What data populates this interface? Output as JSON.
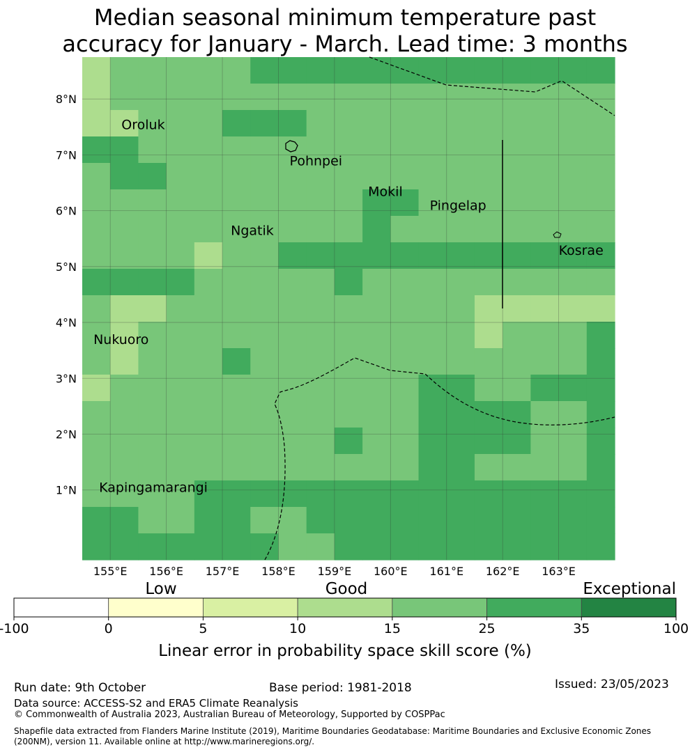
{
  "title": {
    "line1": "Median seasonal minimum temperature past",
    "line2": "accuracy for January - March. Lead time: 3 months"
  },
  "map": {
    "lat_labels": [
      "8°N",
      "7°N",
      "6°N",
      "5°N",
      "4°N",
      "3°N",
      "2°N",
      "1°N"
    ],
    "lon_labels": [
      "155°E",
      "156°E",
      "157°E",
      "158°E",
      "159°E",
      "160°E",
      "161°E",
      "162°E",
      "163°E"
    ],
    "lat_range": [
      -0.25,
      8.75
    ],
    "lon_range": [
      154.5,
      164.0
    ],
    "grid_levels": [
      [
        3,
        4,
        4,
        4,
        4,
        4,
        5,
        5,
        5,
        5,
        5,
        5,
        5,
        5,
        5,
        5,
        5,
        5,
        5
      ],
      [
        3,
        4,
        4,
        4,
        4,
        4,
        4,
        4,
        4,
        4,
        4,
        4,
        4,
        4,
        4,
        4,
        4,
        4,
        4
      ],
      [
        3,
        3,
        4,
        4,
        4,
        5,
        5,
        5,
        4,
        4,
        4,
        4,
        4,
        4,
        4,
        4,
        4,
        4,
        4
      ],
      [
        5,
        5,
        4,
        4,
        4,
        4,
        4,
        4,
        4,
        4,
        4,
        4,
        4,
        4,
        4,
        4,
        4,
        4,
        4
      ],
      [
        4,
        5,
        5,
        4,
        4,
        4,
        4,
        4,
        4,
        4,
        4,
        4,
        4,
        4,
        4,
        4,
        4,
        4,
        4
      ],
      [
        4,
        4,
        4,
        4,
        4,
        4,
        4,
        4,
        4,
        4,
        5,
        5,
        4,
        4,
        4,
        4,
        4,
        4,
        4
      ],
      [
        4,
        4,
        4,
        4,
        4,
        4,
        4,
        4,
        4,
        4,
        5,
        4,
        4,
        4,
        4,
        4,
        4,
        4,
        4
      ],
      [
        4,
        4,
        4,
        4,
        3,
        4,
        4,
        5,
        5,
        5,
        5,
        5,
        5,
        5,
        5,
        5,
        5,
        5,
        5
      ],
      [
        5,
        5,
        5,
        5,
        4,
        4,
        4,
        4,
        4,
        5,
        4,
        4,
        4,
        4,
        4,
        4,
        4,
        4,
        4
      ],
      [
        4,
        3,
        3,
        4,
        4,
        4,
        4,
        4,
        4,
        4,
        4,
        4,
        4,
        4,
        3,
        3,
        3,
        3,
        3
      ],
      [
        4,
        3,
        4,
        4,
        4,
        4,
        4,
        4,
        4,
        4,
        4,
        4,
        4,
        4,
        3,
        4,
        4,
        4,
        5
      ],
      [
        4,
        3,
        4,
        4,
        4,
        5,
        4,
        4,
        4,
        4,
        4,
        4,
        4,
        4,
        4,
        4,
        4,
        4,
        5
      ],
      [
        3,
        4,
        4,
        4,
        4,
        4,
        4,
        4,
        4,
        4,
        4,
        4,
        5,
        5,
        4,
        4,
        5,
        5,
        5
      ],
      [
        4,
        4,
        4,
        4,
        4,
        4,
        4,
        4,
        4,
        4,
        4,
        4,
        5,
        5,
        5,
        5,
        4,
        4,
        5
      ],
      [
        4,
        4,
        4,
        4,
        4,
        4,
        4,
        4,
        4,
        5,
        4,
        4,
        5,
        5,
        5,
        5,
        4,
        4,
        5
      ],
      [
        4,
        4,
        4,
        4,
        4,
        4,
        4,
        4,
        4,
        4,
        4,
        4,
        5,
        5,
        4,
        4,
        4,
        4,
        5
      ],
      [
        4,
        4,
        4,
        4,
        5,
        5,
        5,
        5,
        5,
        5,
        5,
        5,
        5,
        5,
        5,
        5,
        5,
        5,
        5
      ],
      [
        5,
        5,
        4,
        4,
        5,
        5,
        4,
        4,
        5,
        5,
        5,
        5,
        5,
        5,
        5,
        5,
        5,
        5,
        5
      ],
      [
        5,
        5,
        5,
        5,
        5,
        5,
        5,
        4,
        4,
        5,
        5,
        5,
        5,
        5,
        5,
        5,
        5,
        5,
        5
      ]
    ],
    "places": [
      {
        "name": "Oroluk",
        "lon": 155.2,
        "lat": 7.55
      },
      {
        "name": "Pohnpei",
        "lon": 158.2,
        "lat": 6.9
      },
      {
        "name": "Mokil",
        "lon": 159.6,
        "lat": 6.35
      },
      {
        "name": "Pingelap",
        "lon": 160.7,
        "lat": 6.1
      },
      {
        "name": "Ngatik",
        "lon": 157.15,
        "lat": 5.65
      },
      {
        "name": "Kosrae",
        "lon": 163.0,
        "lat": 5.3
      },
      {
        "name": "Nukuoro",
        "lon": 154.7,
        "lat": 3.7
      },
      {
        "name": "Kapingamarangi",
        "lon": 154.8,
        "lat": 1.05
      }
    ]
  },
  "colorbar": {
    "categories": [
      "Low",
      "Good",
      "Exceptional"
    ],
    "ticks": [
      "-100",
      "0",
      "5",
      "10",
      "15",
      "25",
      "35",
      "100"
    ],
    "colors": [
      "#ffffff",
      "#ffffcc",
      "#d9f0a3",
      "#addd8e",
      "#78c679",
      "#41ab5d",
      "#238443"
    ],
    "label": "Linear error in probability space skill score (%)"
  },
  "footer": {
    "run_date": "Run date: 9th October",
    "base_period": "Base period: 1981-2018",
    "issued": "Issued: 23/05/2023",
    "data_source": "Data source: ACCESS-S2 and ERA5 Climate Reanalysis",
    "copyright": "© Commonwealth of Australia 2023, Australian Bureau of Meteorology, Supported by COSPPac",
    "shapefile": "Shapefile data extracted from Flanders Marine Institute (2019), Maritime Boundaries Geodatabase: Maritime Boundaries and Exclusive Economic Zones (200NM), version 11. Available online at http://www.marineregions.org/."
  }
}
